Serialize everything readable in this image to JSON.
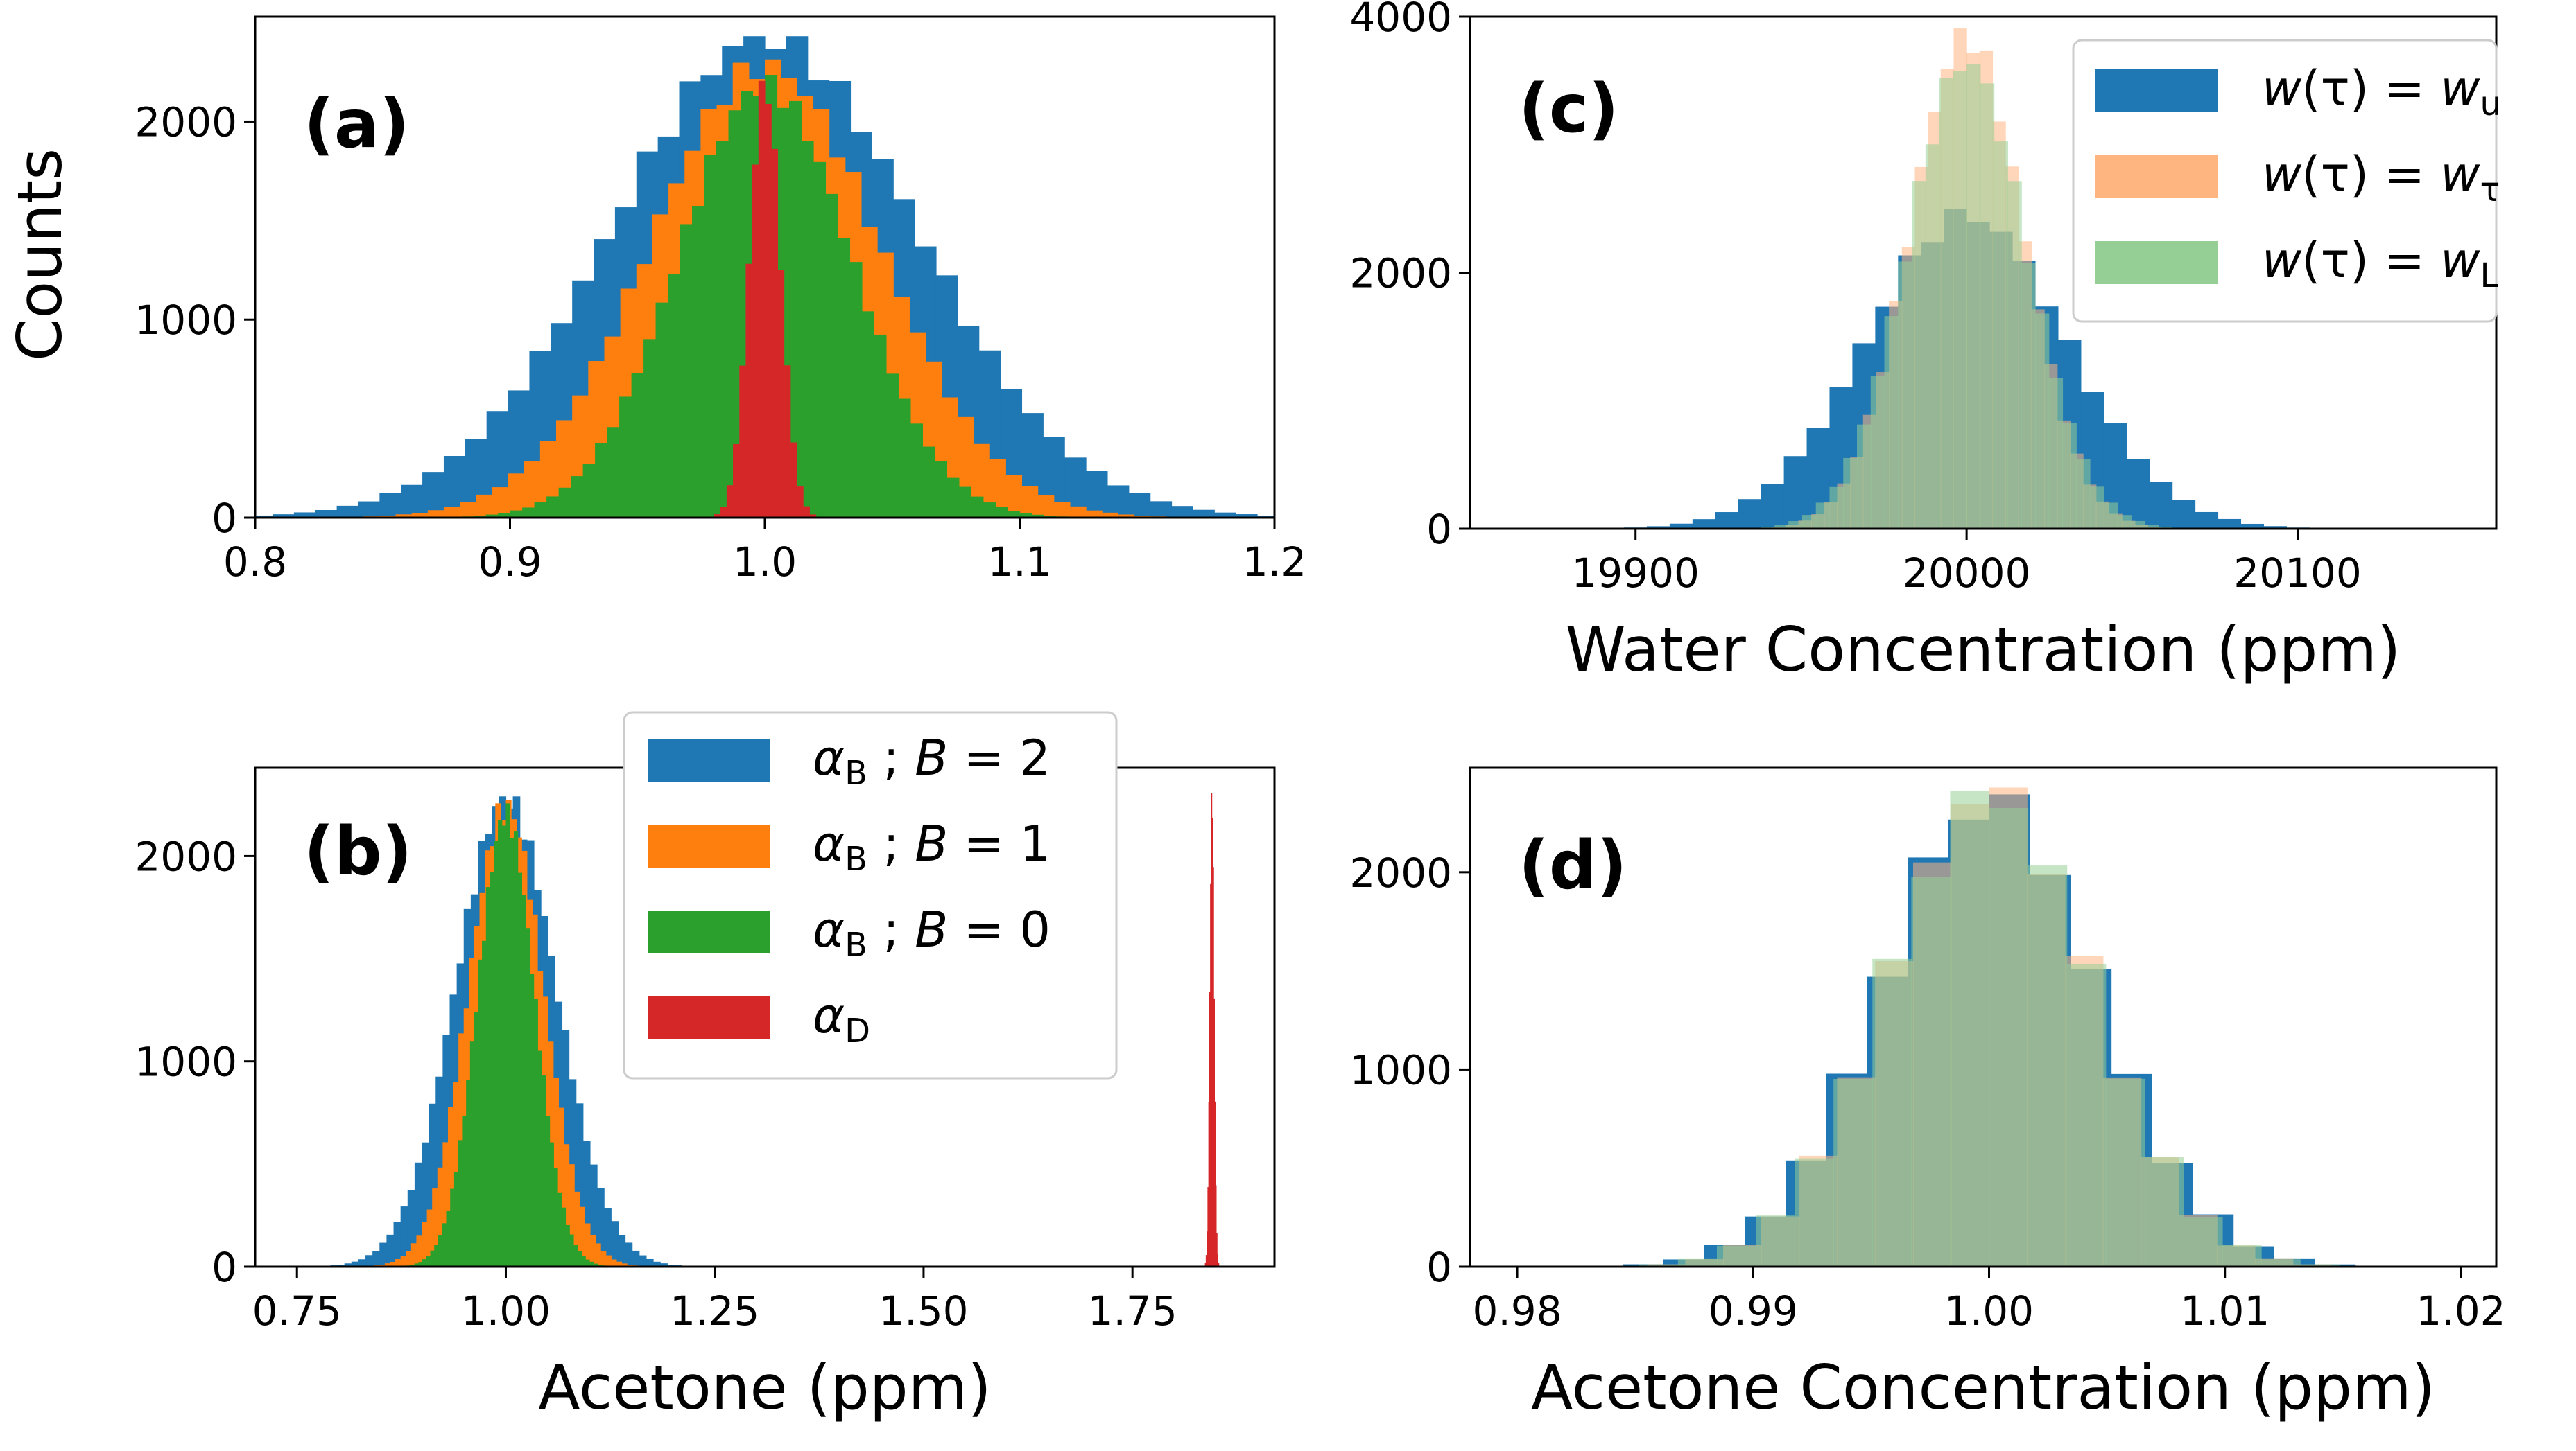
{
  "colors": {
    "blue": "#1f77b4",
    "orange": "#ff7f0e",
    "green": "#2ca02c",
    "red": "#d62728",
    "green_overlap": "#5e8d3a",
    "orange_light": "#ffb57f",
    "green_light": "#95cf95"
  },
  "chart_data": [
    {
      "id": "a",
      "type": "histogram",
      "panel_label": "(a)",
      "xlabel": "",
      "ylabel": "Counts",
      "xlim": [
        0.8,
        1.2
      ],
      "ylim": [
        0,
        2530
      ],
      "xticks": [
        0.8,
        0.9,
        1.0,
        1.1,
        1.2
      ],
      "xtick_labels": [
        "0.8",
        "0.9",
        "1.0",
        "1.1",
        "1.2"
      ],
      "yticks": [
        0,
        1000,
        2000
      ],
      "ytick_labels": [
        "0",
        "1000",
        "2000"
      ],
      "bins": 60,
      "series": [
        {
          "name": "αB ; B = 2",
          "color": "blue",
          "mean": 1.0,
          "std": 0.06,
          "peak": 2420
        },
        {
          "name": "αB ; B = 1",
          "color": "orange",
          "mean": 1.0,
          "std": 0.045,
          "peak": 2280
        },
        {
          "name": "αB ; B = 0",
          "color": "green",
          "mean": 1.0,
          "std": 0.034,
          "peak": 2180
        },
        {
          "name": "αD",
          "color": "red",
          "mean": 1.0,
          "std": 0.006,
          "peak": 2200
        }
      ]
    },
    {
      "id": "b",
      "type": "histogram",
      "panel_label": "(b)",
      "xlabel": "Acetone (ppm)",
      "ylabel": "",
      "xlim": [
        0.7,
        1.92
      ],
      "ylim": [
        0,
        2430
      ],
      "xticks": [
        0.75,
        1.0,
        1.25,
        1.5,
        1.75
      ],
      "xtick_labels": [
        "0.75",
        "1.00",
        "1.25",
        "1.50",
        "1.75"
      ],
      "yticks": [
        0,
        1000,
        2000
      ],
      "ytick_labels": [
        "0",
        "1000",
        "2000"
      ],
      "bins": 60,
      "series": [
        {
          "name": "αB ; B = 2",
          "color": "blue",
          "mean": 1.0,
          "std": 0.06,
          "peak": 2280
        },
        {
          "name": "αB ; B = 1",
          "color": "orange",
          "mean": 1.0,
          "std": 0.045,
          "peak": 2240
        },
        {
          "name": "αB ; B = 0",
          "color": "green",
          "mean": 1.0,
          "std": 0.034,
          "peak": 2200
        },
        {
          "name": "αD",
          "color": "red",
          "mean": 1.845,
          "std": 0.0025,
          "peak": 2300
        }
      ],
      "legend": {
        "placement": "upper-center",
        "entries": [
          {
            "color": "blue",
            "sym": "α",
            "sub": "B",
            "rest": " ; ",
            "var": "B",
            "eq": " = 2"
          },
          {
            "color": "orange",
            "sym": "α",
            "sub": "B",
            "rest": " ; ",
            "var": "B",
            "eq": " = 1"
          },
          {
            "color": "green",
            "sym": "α",
            "sub": "B",
            "rest": " ; ",
            "var": "B",
            "eq": " = 0"
          },
          {
            "color": "red",
            "sym": "α",
            "sub": "D",
            "rest": "",
            "var": "",
            "eq": ""
          }
        ]
      }
    },
    {
      "id": "c",
      "type": "histogram",
      "panel_label": "(c)",
      "xlabel": "Water Concentration (ppm)",
      "ylabel": "",
      "xlim": [
        19850,
        20160
      ],
      "ylim": [
        0,
        4000
      ],
      "xticks": [
        19900,
        20000,
        20100
      ],
      "xtick_labels": [
        "19900",
        "20000",
        "20100"
      ],
      "yticks": [
        0,
        2000,
        4000
      ],
      "ytick_labels": [
        "0",
        "2000",
        "4000"
      ],
      "bins": 40,
      "series": [
        {
          "name": "w(τ) = wu",
          "color": "blue",
          "mean": 20000,
          "std": 30,
          "peak": 2450
        },
        {
          "name": "w(τ) = wτ",
          "color": "orange_light",
          "mean": 20000,
          "std": 17,
          "peak": 3850
        },
        {
          "name": "w(τ) = wL",
          "color": "green_light",
          "mean": 20000,
          "std": 18,
          "peak": 3650
        }
      ],
      "legend": {
        "placement": "top-right",
        "entries": [
          {
            "color": "blue",
            "lhs": "w",
            "tau": "(τ) = ",
            "rhs": "w",
            "sub": "u"
          },
          {
            "color": "orange_light",
            "lhs": "w",
            "tau": "(τ) = ",
            "rhs": "w",
            "sub": "τ"
          },
          {
            "color": "green_light",
            "lhs": "w",
            "tau": "(τ) = ",
            "rhs": "w",
            "sub": "L"
          }
        ]
      }
    },
    {
      "id": "d",
      "type": "histogram",
      "panel_label": "(d)",
      "xlabel": "Acetone Concentration (ppm)",
      "ylabel": "",
      "xlim": [
        0.978,
        1.0215
      ],
      "ylim": [
        0,
        2530
      ],
      "xticks": [
        0.98,
        0.99,
        1.0,
        1.01,
        1.02
      ],
      "xtick_labels": [
        "0.98",
        "0.99",
        "1.00",
        "1.01",
        "1.02"
      ],
      "yticks": [
        0,
        1000,
        2000
      ],
      "ytick_labels": [
        "0",
        "1000",
        "2000"
      ],
      "bins": 40,
      "series": [
        {
          "name": "w(τ) = wu",
          "color": "blue",
          "mean": 1.0,
          "std": 0.0045,
          "peak": 2380
        },
        {
          "name": "w(τ) = wτ",
          "color": "orange_light",
          "mean": 1.0,
          "std": 0.0042,
          "peak": 2420
        },
        {
          "name": "w(τ) = wL",
          "color": "green_light",
          "mean": 1.0,
          "std": 0.0043,
          "peak": 2400
        }
      ]
    }
  ]
}
